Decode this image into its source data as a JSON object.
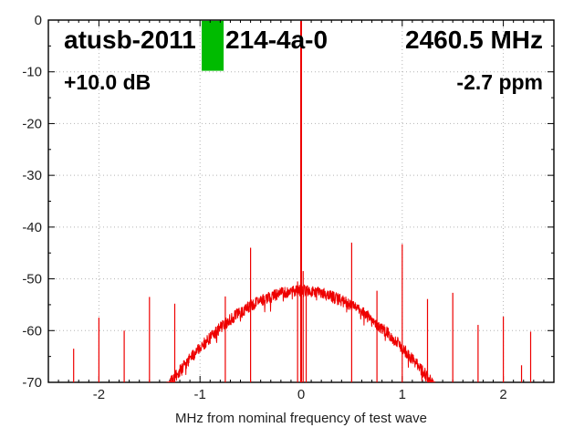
{
  "title": {
    "left_part": "atusb-2011",
    "right_part": "214-4a-0",
    "frequency": "2460.5 MHz"
  },
  "annotations": {
    "gain": "+10.0 dB",
    "ppm_offset": "-2.7 ppm"
  },
  "marker": {
    "color": "#00bb00",
    "f_center_mhz": -0.875,
    "f_width_mhz": 0.217,
    "top_db": 0,
    "bottom_db": -9.8
  },
  "chart_data": {
    "type": "line",
    "title": "atusb-2011 [marker] 214-4a-0",
    "xlabel": "MHz from nominal frequency of test wave",
    "ylabel": "",
    "xlim": [
      -2.5,
      2.5
    ],
    "ylim": [
      -70,
      0
    ],
    "xticks": [
      -2,
      -1,
      0,
      1,
      2
    ],
    "yticks": [
      0,
      -10,
      -20,
      -30,
      -40,
      -50,
      -60,
      -70
    ],
    "x_minor_step_mhz": 0.1,
    "y_minor_step_db": 5,
    "grid": "dotted at major ticks",
    "legend": "none",
    "line_color": "#ee0000",
    "grid_color": "#b4b4b4",
    "axis_color": "#000000",
    "carrier": {
      "f_mhz": 0.0,
      "peak_db": -0.2
    },
    "noise_hump_points": [
      [
        -1.45,
        -74
      ],
      [
        -1.35,
        -71.5
      ],
      [
        -1.25,
        -69
      ],
      [
        -1.15,
        -66.6
      ],
      [
        -1.05,
        -64.4
      ],
      [
        -0.95,
        -62.3
      ],
      [
        -0.85,
        -60.4
      ],
      [
        -0.75,
        -58.7
      ],
      [
        -0.65,
        -57.1
      ],
      [
        -0.55,
        -55.8
      ],
      [
        -0.45,
        -54.7
      ],
      [
        -0.35,
        -53.8
      ],
      [
        -0.25,
        -53.1
      ],
      [
        -0.15,
        -52.6
      ],
      [
        -0.05,
        -52.35
      ],
      [
        0,
        -52.3
      ],
      [
        0.05,
        -52.35
      ],
      [
        0.15,
        -52.6
      ],
      [
        0.25,
        -53.1
      ],
      [
        0.35,
        -53.8
      ],
      [
        0.45,
        -54.7
      ],
      [
        0.55,
        -55.8
      ],
      [
        0.65,
        -57.1
      ],
      [
        0.75,
        -58.7
      ],
      [
        0.85,
        -60.4
      ],
      [
        0.95,
        -62.3
      ],
      [
        1.05,
        -64.4
      ],
      [
        1.15,
        -66.6
      ],
      [
        1.25,
        -69
      ],
      [
        1.35,
        -71.5
      ],
      [
        1.45,
        -74
      ]
    ],
    "noise_jitter_db": 2.3,
    "spurs_f_mhz_top_db": [
      [
        -2.25,
        -63.5
      ],
      [
        -2.0,
        -57.5
      ],
      [
        -1.75,
        -60.0
      ],
      [
        -1.5,
        -53.5
      ],
      [
        -1.25,
        -54.8
      ],
      [
        -0.75,
        -53.4
      ],
      [
        -0.5,
        -44.0
      ],
      [
        -0.035,
        -50.5
      ],
      [
        0.02,
        -48.5
      ],
      [
        0.05,
        -51.5
      ],
      [
        0.5,
        -43.0
      ],
      [
        0.75,
        -52.3
      ],
      [
        1.0,
        -43.3
      ],
      [
        1.25,
        -53.9
      ],
      [
        1.5,
        -52.7
      ],
      [
        1.75,
        -58.9
      ],
      [
        2.0,
        -57.3
      ],
      [
        2.18,
        -66.7
      ],
      [
        2.27,
        -60.2
      ]
    ]
  }
}
